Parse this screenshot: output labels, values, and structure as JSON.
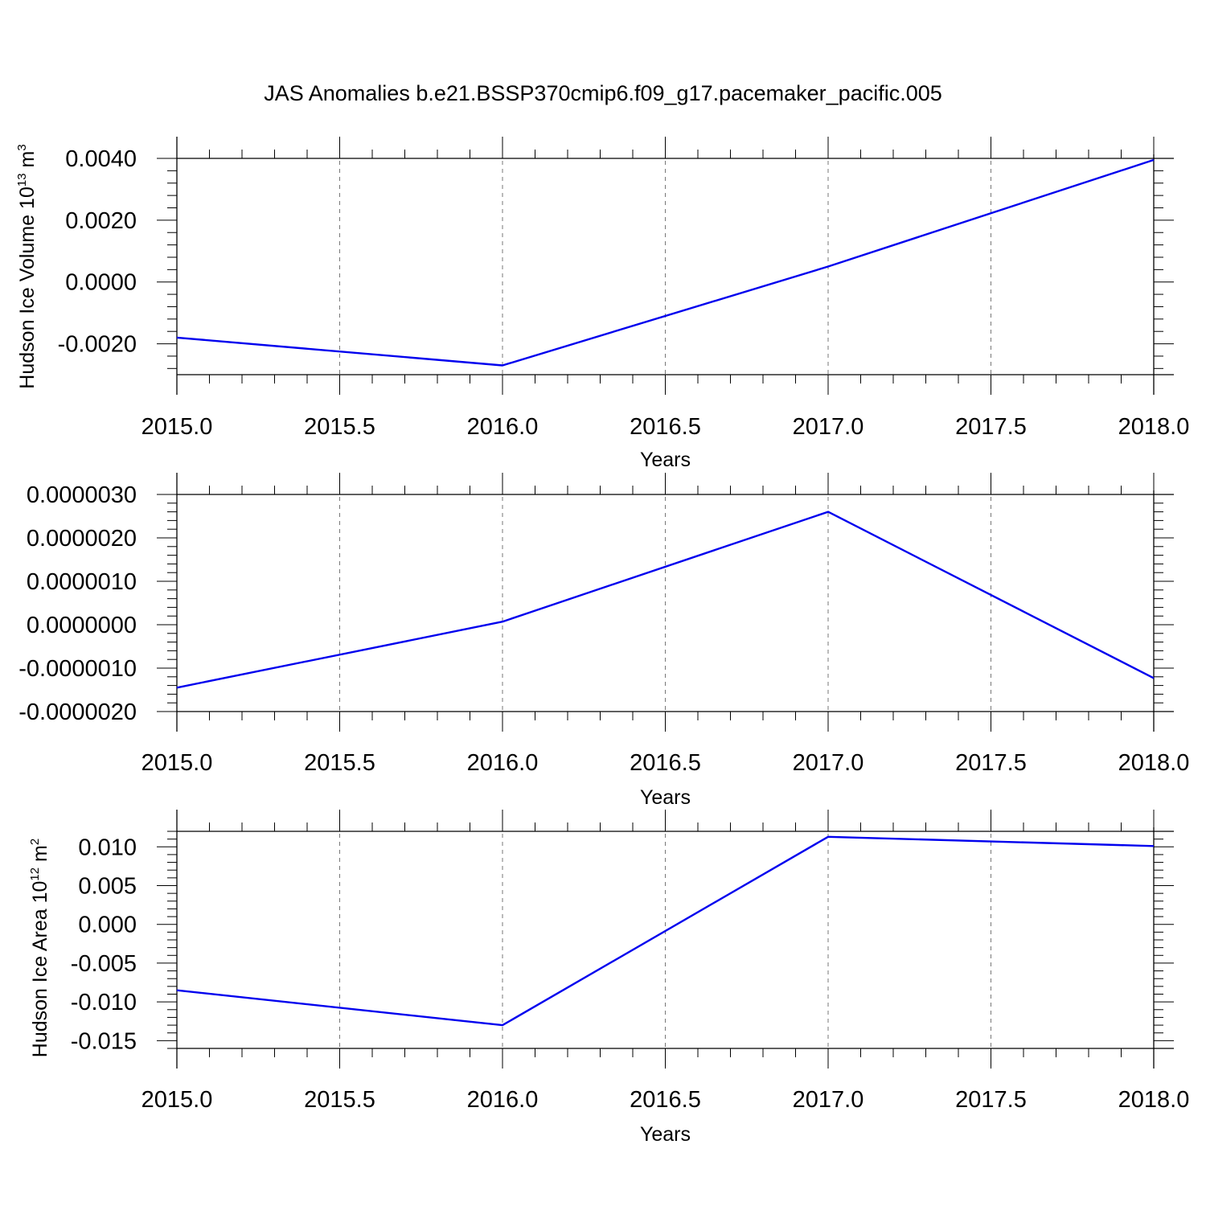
{
  "figure": {
    "title": "JAS Anomalies b.e21.BSSP370cmip6.f09_g17.pacemaker_pacific.005"
  },
  "colors": {
    "line": "#0000ee",
    "frame": "#000000",
    "grid": "#777777"
  },
  "chart_data": [
    {
      "type": "line",
      "title": "",
      "xlabel": "Years",
      "ylabel": "Hudson Ice Volume 10",
      "ylabel_exp": "13",
      "ylabel_tail": " m",
      "ylabel_tail_exp": "3",
      "xlim": [
        2015.0,
        2018.0
      ],
      "ylim": [
        -0.003,
        0.004
      ],
      "xticks": [
        "2015.0",
        "2015.5",
        "2016.0",
        "2016.5",
        "2017.0",
        "2017.5",
        "2018.0"
      ],
      "xtick_values": [
        2015.0,
        2015.5,
        2016.0,
        2016.5,
        2017.0,
        2017.5,
        2018.0
      ],
      "yticks": [
        "0.0040",
        "0.0020",
        "0.0000",
        "-0.0020"
      ],
      "ytick_values": [
        0.004,
        0.002,
        0.0,
        -0.002
      ],
      "grid": "x-dashed",
      "series": [
        {
          "x": [
            2015,
            2016,
            2017,
            2018
          ],
          "values": [
            -0.0018,
            -0.0027,
            0.0005,
            0.00395
          ]
        }
      ]
    },
    {
      "type": "line",
      "title": "",
      "xlabel": "Years",
      "ylabel": "",
      "xlim": [
        2015.0,
        2018.0
      ],
      "ylim": [
        -2e-06,
        3e-06
      ],
      "xticks": [
        "2015.0",
        "2015.5",
        "2016.0",
        "2016.5",
        "2017.0",
        "2017.5",
        "2018.0"
      ],
      "xtick_values": [
        2015.0,
        2015.5,
        2016.0,
        2016.5,
        2017.0,
        2017.5,
        2018.0
      ],
      "yticks": [
        "0.0000030",
        "0.0000020",
        "0.0000010",
        "0.0000000",
        "-0.0000010",
        "-0.0000020"
      ],
      "ytick_values": [
        3e-06,
        2e-06,
        1e-06,
        0.0,
        -1e-06,
        -2e-06
      ],
      "grid": "x-dashed",
      "series": [
        {
          "x": [
            2015,
            2016,
            2017,
            2018
          ],
          "values": [
            -1.45e-06,
            7e-08,
            2.6e-06,
            -1.23e-06
          ]
        }
      ]
    },
    {
      "type": "line",
      "title": "",
      "xlabel": "Years",
      "ylabel": "Hudson Ice Area 10",
      "ylabel_exp": "12",
      "ylabel_tail": " m",
      "ylabel_tail_exp": "2",
      "xlim": [
        2015.0,
        2018.0
      ],
      "ylim": [
        -0.016,
        0.012
      ],
      "xticks": [
        "2015.0",
        "2015.5",
        "2016.0",
        "2016.5",
        "2017.0",
        "2017.5",
        "2018.0"
      ],
      "xtick_values": [
        2015.0,
        2015.5,
        2016.0,
        2016.5,
        2017.0,
        2017.5,
        2018.0
      ],
      "yticks": [
        "0.010",
        "0.005",
        "0.000",
        "-0.005",
        "-0.010",
        "-0.015"
      ],
      "ytick_values": [
        0.01,
        0.005,
        0.0,
        -0.005,
        -0.01,
        -0.015
      ],
      "grid": "x-dashed",
      "series": [
        {
          "x": [
            2015,
            2016,
            2017,
            2018
          ],
          "values": [
            -0.0085,
            -0.013,
            0.0113,
            0.0101
          ]
        }
      ]
    }
  ]
}
